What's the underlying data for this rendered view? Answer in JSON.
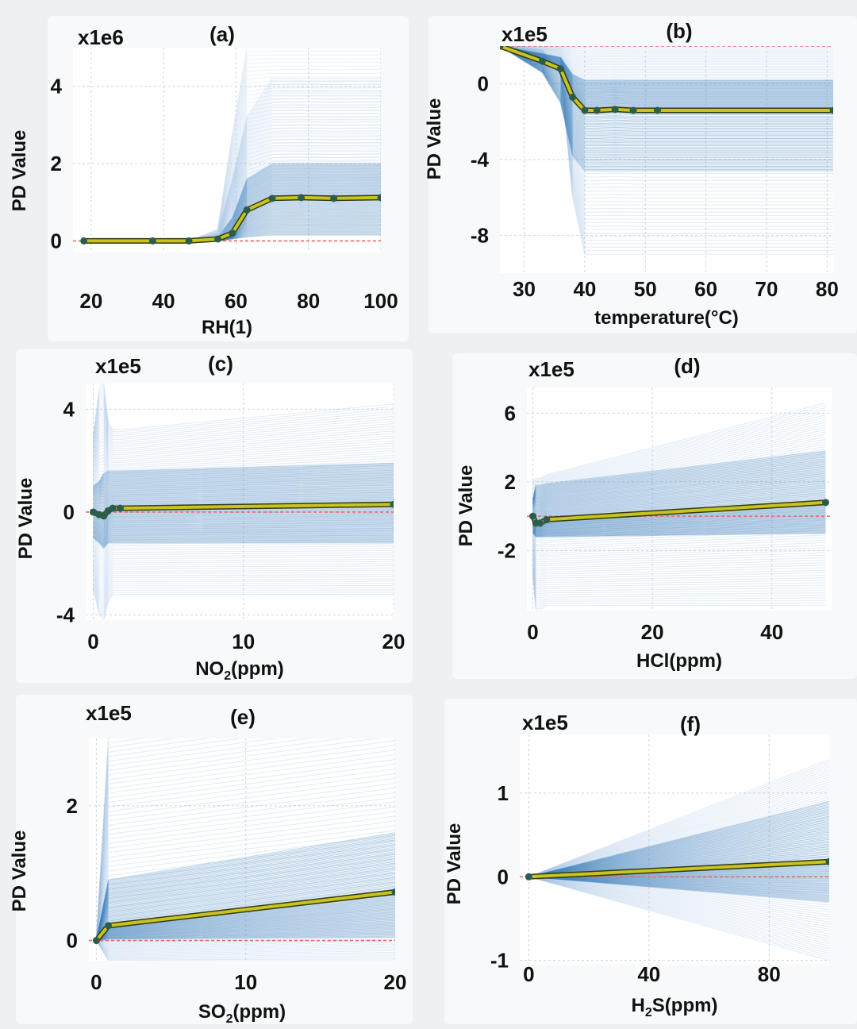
{
  "chart_data": [
    {
      "panel": "(a)",
      "type": "line",
      "multiplier": "x1e6",
      "xlabel": "RH(1)",
      "xlabel_parts": [
        {
          "t": "RH(1)"
        }
      ],
      "ylabel": "PD Value",
      "xlim": [
        15,
        100
      ],
      "ylim": [
        -0.3,
        5
      ],
      "xticks": [
        20,
        40,
        60,
        80,
        100
      ],
      "yticks": [
        0,
        2,
        4
      ],
      "series": [
        {
          "x": [
            18,
            37,
            47,
            55,
            59,
            63,
            70,
            78,
            87,
            100
          ],
          "y": [
            0,
            0,
            0,
            0.05,
            0.2,
            0.8,
            1.1,
            1.12,
            1.1,
            1.12
          ]
        }
      ],
      "ice_bands": [
        {
          "color": "#3d7ebb",
          "opacity": 0.5,
          "y": [
            0,
            0,
            0,
            0.1,
            0.6,
            1.6,
            2.0,
            2.0,
            2.0,
            2.0
          ]
        },
        {
          "color": "#3d7ebb",
          "opacity": 0.5,
          "y": [
            0,
            0,
            0,
            0,
            0.05,
            0.1,
            0.15,
            0.15,
            0.15,
            0.15
          ]
        },
        {
          "color": "#9bbde0",
          "opacity": 0.45,
          "y": [
            0,
            0,
            0,
            0.2,
            1.6,
            3.2,
            4.2,
            4.2,
            4.2,
            4.2
          ]
        },
        {
          "color": "#b9d1ea",
          "opacity": 0.45,
          "y": [
            0,
            0,
            0,
            0.3,
            2.8,
            5.0,
            5.0,
            5.0,
            5.0,
            5.0
          ]
        }
      ],
      "ref_line": 0
    },
    {
      "panel": "(b)",
      "type": "line",
      "multiplier": "x1e5",
      "xlabel": "temperature(°C)",
      "xlabel_parts": [
        {
          "t": "temperature(°C)"
        }
      ],
      "ylabel": "PD Value",
      "xlim": [
        26,
        81
      ],
      "ylim": [
        -10,
        2
      ],
      "xticks": [
        30,
        40,
        50,
        60,
        70,
        80
      ],
      "yticks": [
        0,
        -4,
        -8
      ],
      "series": [
        {
          "x": [
            26,
            33,
            36,
            38,
            40,
            42,
            45,
            48,
            52,
            81
          ],
          "y": [
            2,
            1.2,
            0.8,
            -0.7,
            -1.4,
            -1.4,
            -1.35,
            -1.4,
            -1.4,
            -1.4
          ]
        }
      ],
      "ice_bands": [
        {
          "color": "#9bbde0",
          "opacity": 0.45,
          "y": [
            2,
            1.8,
            0.5,
            -6,
            -9,
            -9,
            -9,
            -9,
            -9,
            -9
          ]
        },
        {
          "color": "#9bbde0",
          "opacity": 0.45,
          "y": [
            2,
            2,
            2,
            2,
            2,
            2,
            2,
            2,
            2,
            2
          ]
        },
        {
          "color": "#3d7ebb",
          "opacity": 0.5,
          "y": [
            2,
            1.6,
            1.4,
            0.5,
            0.2,
            0.2,
            0.2,
            0.2,
            0.2,
            0.2
          ]
        },
        {
          "color": "#3d7ebb",
          "opacity": 0.5,
          "y": [
            2,
            0.6,
            -1.0,
            -3.8,
            -4.6,
            -4.6,
            -4.6,
            -4.6,
            -4.6,
            -4.6
          ]
        }
      ],
      "ref_line": 2
    },
    {
      "panel": "(c)",
      "type": "line",
      "multiplier": "x1e5",
      "xlabel": "NO2(ppm)",
      "xlabel_parts": [
        {
          "t": "NO"
        },
        {
          "t": "2",
          "sub": true
        },
        {
          "t": "(ppm)"
        }
      ],
      "ylabel": "PD Value",
      "xlim": [
        -0.5,
        20
      ],
      "ylim": [
        -4.2,
        5
      ],
      "xticks": [
        0,
        10,
        20
      ],
      "yticks": [
        4,
        0,
        -4
      ],
      "series": [
        {
          "x": [
            0,
            0.4,
            0.7,
            1.0,
            1.3,
            1.8,
            20
          ],
          "y": [
            0,
            -0.1,
            -0.15,
            0.05,
            0.15,
            0.15,
            0.3
          ]
        }
      ],
      "ice_bands": [
        {
          "color": "#9bbde0",
          "opacity": 0.45,
          "y": [
            3,
            4.8,
            5,
            3.5,
            3.2,
            3.2,
            4.2
          ]
        },
        {
          "color": "#9bbde0",
          "opacity": 0.45,
          "y": [
            -3,
            -4,
            -4.2,
            -3.5,
            -3.2,
            -3.2,
            -3.2
          ]
        },
        {
          "color": "#3d7ebb",
          "opacity": 0.5,
          "y": [
            1,
            1.2,
            1.5,
            1.6,
            1.6,
            1.6,
            1.9
          ]
        },
        {
          "color": "#3d7ebb",
          "opacity": 0.5,
          "y": [
            -1,
            -1.2,
            -1.4,
            -1.2,
            -1.2,
            -1.2,
            -1.2
          ]
        }
      ],
      "ref_line": 0
    },
    {
      "panel": "(d)",
      "type": "line",
      "multiplier": "x1e5",
      "xlabel": "HCl(ppm)",
      "xlabel_parts": [
        {
          "t": "HCl(ppm)"
        }
      ],
      "ylabel": "PD Value",
      "xlim": [
        -1,
        50
      ],
      "ylim": [
        -5.5,
        7.5
      ],
      "xticks": [
        0,
        20,
        40
      ],
      "yticks": [
        6,
        2,
        -2
      ],
      "series": [
        {
          "x": [
            0,
            0.5,
            1.2,
            2.3,
            49
          ],
          "y": [
            0,
            -0.4,
            -0.4,
            -0.2,
            0.8
          ]
        }
      ],
      "ice_bands": [
        {
          "color": "#9bbde0",
          "opacity": 0.45,
          "y": [
            2,
            2.2,
            2.2,
            2.4,
            6.6
          ]
        },
        {
          "color": "#9bbde0",
          "opacity": 0.45,
          "y": [
            -3.5,
            -5.5,
            -5.5,
            -5.2,
            -5.2
          ]
        },
        {
          "color": "#3d7ebb",
          "opacity": 0.5,
          "y": [
            1,
            1.8,
            1.8,
            1.9,
            3.8
          ]
        },
        {
          "color": "#3d7ebb",
          "opacity": 0.5,
          "y": [
            -1,
            -1.2,
            -1.2,
            -1.2,
            -1.0
          ]
        }
      ],
      "ref_line": 0
    },
    {
      "panel": "(e)",
      "type": "line",
      "multiplier": "x1e5",
      "xlabel": "SO2(ppm)",
      "xlabel_parts": [
        {
          "t": "SO"
        },
        {
          "t": "2",
          "sub": true
        },
        {
          "t": "(ppm)"
        }
      ],
      "ylabel": "PD Value",
      "xlim": [
        -0.5,
        20
      ],
      "ylim": [
        -0.3,
        3
      ],
      "xticks": [
        0,
        10,
        20
      ],
      "yticks": [
        2,
        0
      ],
      "series": [
        {
          "x": [
            0,
            0.8,
            20
          ],
          "y": [
            0,
            0.22,
            0.72
          ]
        }
      ],
      "ice_bands": [
        {
          "color": "#9bbde0",
          "opacity": 0.45,
          "y": [
            0,
            3.0,
            3.6
          ]
        },
        {
          "color": "#9bbde0",
          "opacity": 0.45,
          "y": [
            0,
            -0.3,
            -0.3
          ]
        },
        {
          "color": "#3d7ebb",
          "opacity": 0.5,
          "y": [
            0,
            0.9,
            1.6
          ]
        },
        {
          "color": "#3d7ebb",
          "opacity": 0.5,
          "y": [
            0,
            0.02,
            0.05
          ]
        }
      ],
      "ref_line": 0
    },
    {
      "panel": "(f)",
      "type": "line",
      "multiplier": "x1e5",
      "xlabel": "H2S(ppm)",
      "xlabel_parts": [
        {
          "t": "H"
        },
        {
          "t": "2",
          "sub": true
        },
        {
          "t": "S(ppm)"
        }
      ],
      "ylabel": "PD Value",
      "xlim": [
        -3,
        100
      ],
      "ylim": [
        -1.05,
        1.7
      ],
      "xticks": [
        0,
        40,
        80
      ],
      "yticks": [
        1,
        0,
        -1
      ],
      "series": [
        {
          "x": [
            0,
            100
          ],
          "y": [
            0,
            0.18
          ]
        }
      ],
      "ice_bands": [
        {
          "color": "#9bbde0",
          "opacity": 0.45,
          "y": [
            0,
            1.4
          ]
        },
        {
          "color": "#9bbde0",
          "opacity": 0.45,
          "y": [
            0,
            -1.0
          ]
        },
        {
          "color": "#3d7ebb",
          "opacity": 0.5,
          "y": [
            0,
            0.9
          ]
        },
        {
          "color": "#3d7ebb",
          "opacity": 0.5,
          "y": [
            0,
            -0.3
          ]
        }
      ],
      "ref_line": 0
    }
  ],
  "colors": {
    "pd_line": "#c9c21f",
    "pd_line_edge": "#2f3b12",
    "pd_marker": "#2b5d4b",
    "ref_line": "#e86a5e",
    "grid": "#cfd6de",
    "plot_bg": "#ffffff"
  }
}
